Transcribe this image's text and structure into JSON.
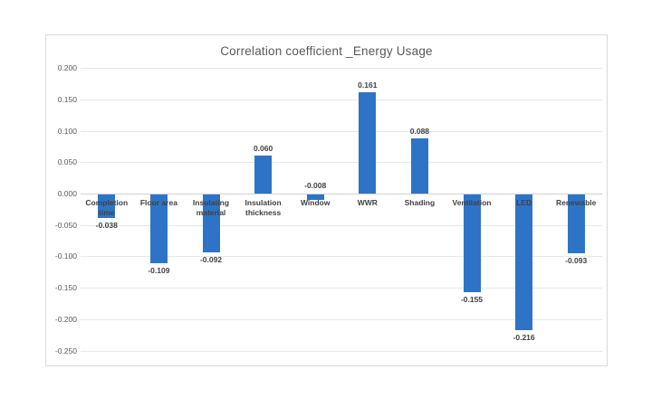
{
  "chart_data": {
    "type": "bar",
    "title": "Correlation coefficient _Energy Usage",
    "categories": [
      "Completion time",
      "Floor area",
      "Insulating material",
      "Insulation thickness",
      "Window",
      "WWR",
      "Shading",
      "Ventilation",
      "LED",
      "Renewable"
    ],
    "values": [
      -0.038,
      -0.109,
      -0.092,
      0.06,
      -0.008,
      0.161,
      0.088,
      -0.155,
      -0.216,
      -0.093
    ],
    "value_labels": [
      "-0.038",
      "-0.109",
      "-0.092",
      "0.060",
      "-0.008",
      "0.161",
      "0.088",
      "-0.155",
      "-0.216",
      "-0.093"
    ],
    "xlabel": "",
    "ylabel": "",
    "ylim": [
      -0.25,
      0.2
    ],
    "y_ticks": [
      {
        "label": "0.200",
        "value": 0.2
      },
      {
        "label": "0.150",
        "value": 0.15
      },
      {
        "label": "0.100",
        "value": 0.1
      },
      {
        "label": "0.050",
        "value": 0.05
      },
      {
        "label": "0.000",
        "value": 0.0
      },
      {
        "label": "-0.050",
        "value": -0.05
      },
      {
        "label": "-0.100",
        "value": -0.1
      },
      {
        "label": "-0.150",
        "value": -0.15
      },
      {
        "label": "-0.200",
        "value": -0.2
      },
      {
        "label": "-0.250",
        "value": -0.25
      }
    ],
    "grid": true,
    "legend": false,
    "bar_color": "#2e74c6"
  }
}
